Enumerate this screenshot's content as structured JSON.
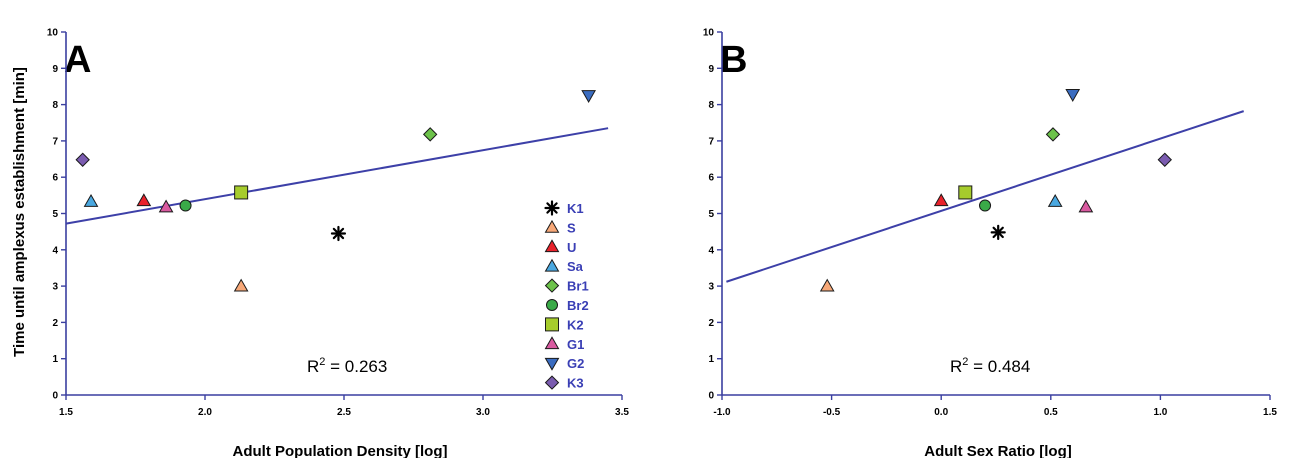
{
  "colors": {
    "axis": "#3a3fa0",
    "fit_line": "#3d40a8",
    "legend_text": "#3a3fb5",
    "marker_stroke": "#1a1a1a"
  },
  "legend": [
    {
      "name": "K1",
      "marker": "asterisk",
      "color": "#000000"
    },
    {
      "name": "S",
      "marker": "triangle-up",
      "color": "#f7a878"
    },
    {
      "name": "U",
      "marker": "triangle-up",
      "color": "#e8222b"
    },
    {
      "name": "Sa",
      "marker": "triangle-up",
      "color": "#4aa8e0"
    },
    {
      "name": "Br1",
      "marker": "diamond",
      "color": "#6cc24a"
    },
    {
      "name": "Br2",
      "marker": "circle",
      "color": "#3aaa48"
    },
    {
      "name": "K2",
      "marker": "square",
      "color": "#a6cc2c"
    },
    {
      "name": "G1",
      "marker": "triangle-up",
      "color": "#d95aa0"
    },
    {
      "name": "G2",
      "marker": "triangle-down",
      "color": "#3a6cc0"
    },
    {
      "name": "K3",
      "marker": "diamond",
      "color": "#7b5cb0"
    }
  ],
  "chart_data": [
    {
      "type": "scatter",
      "panel": "A",
      "xlabel": "Adult Population Density [log]",
      "ylabel": "Time until amplexus establishment [min]",
      "xlim": [
        1.5,
        3.5
      ],
      "ylim": [
        0,
        10
      ],
      "xticks": [
        "1.5",
        "2.0",
        "2.5",
        "3.0",
        "3.5"
      ],
      "yticks": [
        "0",
        "1",
        "2",
        "3",
        "4",
        "5",
        "6",
        "7",
        "8",
        "9",
        "10"
      ],
      "annotation": "R",
      "annotation_sup": "2",
      "annotation_value": " = 0.263",
      "fit_line": {
        "x": [
          1.5,
          3.45
        ],
        "y": [
          4.72,
          7.35
        ]
      },
      "points": [
        {
          "name": "K1",
          "x": 2.48,
          "y": 4.45
        },
        {
          "name": "S",
          "x": 2.13,
          "y": 3.0
        },
        {
          "name": "U",
          "x": 1.78,
          "y": 5.35
        },
        {
          "name": "Sa",
          "x": 1.59,
          "y": 5.33
        },
        {
          "name": "Br1",
          "x": 2.81,
          "y": 7.18
        },
        {
          "name": "Br2",
          "x": 1.93,
          "y": 5.22
        },
        {
          "name": "K2",
          "x": 2.13,
          "y": 5.58
        },
        {
          "name": "G1",
          "x": 1.86,
          "y": 5.18
        },
        {
          "name": "G2",
          "x": 3.38,
          "y": 8.25
        },
        {
          "name": "K3",
          "x": 1.56,
          "y": 6.48
        }
      ]
    },
    {
      "type": "scatter",
      "panel": "B",
      "xlabel": "Adult Sex Ratio [log]",
      "ylabel": "",
      "xlim": [
        -1.0,
        1.5
      ],
      "ylim": [
        0,
        10
      ],
      "xticks": [
        "-1.0",
        "-0.5",
        "0.0",
        "0.5",
        "1.0",
        "1.5"
      ],
      "yticks": [
        "0",
        "1",
        "2",
        "3",
        "4",
        "5",
        "6",
        "7",
        "8",
        "9",
        "10"
      ],
      "annotation": "R",
      "annotation_sup": "2",
      "annotation_value": " = 0.484",
      "fit_line": {
        "x": [
          -0.98,
          1.38
        ],
        "y": [
          3.12,
          7.82
        ]
      },
      "points": [
        {
          "name": "K1",
          "x": 0.26,
          "y": 4.48
        },
        {
          "name": "S",
          "x": -0.52,
          "y": 3.0
        },
        {
          "name": "U",
          "x": 0.0,
          "y": 5.35
        },
        {
          "name": "Sa",
          "x": 0.52,
          "y": 5.33
        },
        {
          "name": "Br1",
          "x": 0.51,
          "y": 7.18
        },
        {
          "name": "Br2",
          "x": 0.2,
          "y": 5.22
        },
        {
          "name": "K2",
          "x": 0.11,
          "y": 5.58
        },
        {
          "name": "G1",
          "x": 0.66,
          "y": 5.18
        },
        {
          "name": "G2",
          "x": 0.6,
          "y": 8.28
        },
        {
          "name": "K3",
          "x": 1.02,
          "y": 6.48
        }
      ]
    }
  ]
}
